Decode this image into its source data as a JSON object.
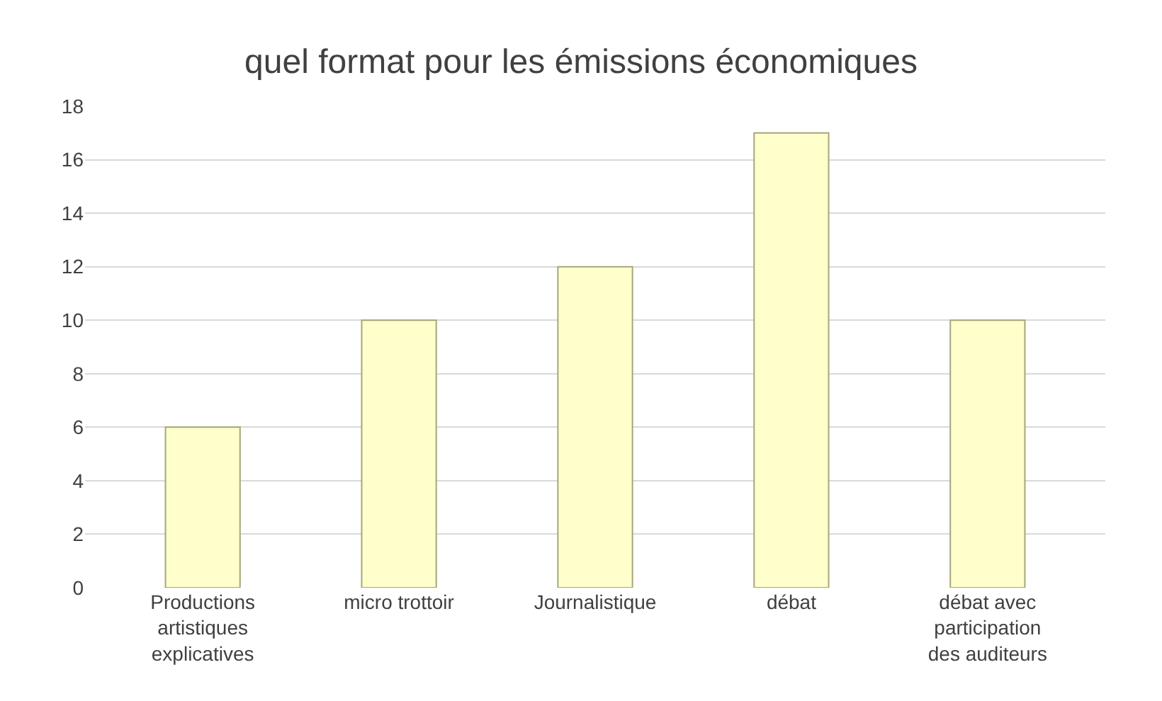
{
  "chart_data": {
    "type": "bar",
    "title": "quel format pour les émissions économiques",
    "categories": [
      "Productions artistiques explicatives",
      "micro trottoir",
      "Journalistique",
      "débat",
      "débat avec participation des auditeurs"
    ],
    "values": [
      6,
      10,
      12,
      17,
      10
    ],
    "color": "#ffffcc",
    "ylim": [
      0,
      18
    ],
    "yticks": [
      0,
      2,
      4,
      6,
      8,
      10,
      12,
      14,
      16,
      18
    ],
    "grid": "y"
  }
}
